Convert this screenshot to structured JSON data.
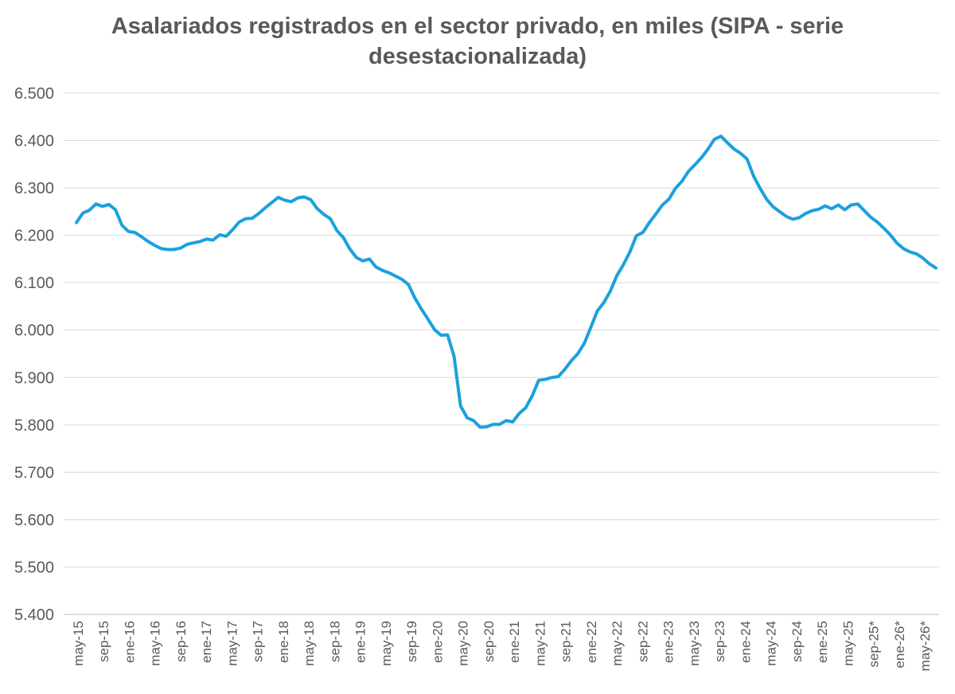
{
  "chart_data": {
    "type": "line",
    "title": "Asalariados registrados en el sector privado, en miles (SIPA - serie desestacionalizada)",
    "xlabel": "",
    "ylabel": "",
    "ylim": [
      5400,
      6500
    ],
    "yticks": [
      5400,
      5500,
      5600,
      5700,
      5800,
      5900,
      6000,
      6100,
      6200,
      6300,
      6400,
      6500
    ],
    "ytick_labels": [
      "5.400",
      "5.500",
      "5.600",
      "5.700",
      "5.800",
      "5.900",
      "6.000",
      "6.100",
      "6.200",
      "6.300",
      "6.400",
      "6.500"
    ],
    "x_tick_labels": [
      "may-15",
      "sep-15",
      "ene-16",
      "may-16",
      "sep-16",
      "ene-17",
      "may-17",
      "sep-17",
      "ene-18",
      "may-18",
      "sep-18",
      "ene-19",
      "may-19",
      "sep-19",
      "ene-20",
      "may-20",
      "sep-20",
      "ene-21",
      "may-21",
      "sep-21",
      "ene-22",
      "may-22",
      "sep-22",
      "ene-23",
      "may-23",
      "sep-23",
      "ene-24",
      "may-24",
      "sep-24",
      "ene-25",
      "may-25",
      "sep-25*",
      "ene-26*",
      "may-26*"
    ],
    "grid": true,
    "legend": "none",
    "color": "#1ba1dc",
    "series": [
      {
        "values": [
          6227,
          6247,
          6253,
          6266,
          6261,
          6265,
          6254,
          6221,
          6208,
          6206,
          6197,
          6187,
          6179,
          6172,
          6170,
          6170,
          6173,
          6181,
          6184,
          6187,
          6192,
          6190,
          6201,
          6198,
          6212,
          6228,
          6235,
          6236,
          6246,
          6258,
          6269,
          6280,
          6274,
          6271,
          6279,
          6281,
          6275,
          6256,
          6244,
          6235,
          6210,
          6195,
          6171,
          6153,
          6146,
          6150,
          6133,
          6126,
          6121,
          6114,
          6107,
          6096,
          6067,
          6044,
          6023,
          6001,
          5989,
          5990,
          5945,
          5840,
          5815,
          5809,
          5795,
          5796,
          5801,
          5801,
          5809,
          5806,
          5824,
          5836,
          5861,
          5894,
          5896,
          5900,
          5902,
          5917,
          5935,
          5950,
          5972,
          6006,
          6040,
          6058,
          6082,
          6115,
          6138,
          6165,
          6199,
          6206,
          6227,
          6245,
          6264,
          6276,
          6299,
          6314,
          6335,
          6349,
          6364,
          6382,
          6403,
          6409,
          6395,
          6382,
          6373,
          6361,
          6325,
          6299,
          6276,
          6260,
          6250,
          6240,
          6234,
          6237,
          6246,
          6252,
          6255,
          6262,
          6256,
          6264,
          6254,
          6264,
          6266,
          6252,
          6238,
          6228,
          6215,
          6201,
          6184,
          6172,
          6165,
          6161,
          6152,
          6140,
          6131
        ]
      }
    ]
  }
}
